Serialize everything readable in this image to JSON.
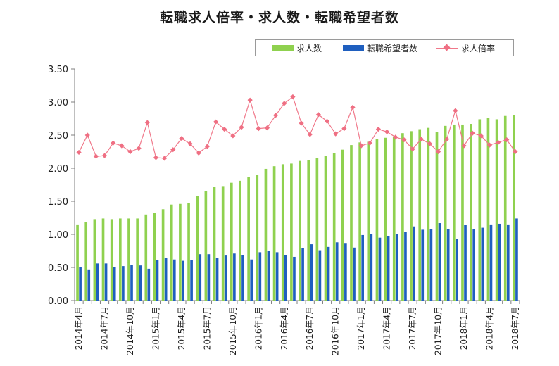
{
  "chart_data": {
    "type": "bar",
    "title": "転職求人倍率・求人数・転職希望者数",
    "xlabel": "",
    "ylabel": "",
    "ylim": [
      0,
      3.5
    ],
    "yticks": [
      "0.00",
      "0.50",
      "1.00",
      "1.50",
      "2.00",
      "2.50",
      "3.00",
      "3.50"
    ],
    "tick_labels": [
      "2014年4月",
      "2014年7月",
      "2014年10月",
      "2015年1月",
      "2015年4月",
      "2015年7月",
      "2015年10月",
      "2016年1月",
      "2016年4月",
      "2016年7月",
      "2016年10月",
      "2017年1月",
      "2017年4月",
      "2017年7月",
      "2017年10月",
      "2018年1月",
      "2018年4月",
      "2018年7月"
    ],
    "legend_position": "top-right",
    "grid": false,
    "colors": {
      "求人数": "#8fd14f",
      "転職希望者数": "#1f5fbf",
      "求人倍率": "#ef6f83"
    },
    "x": [
      "2014-04",
      "2014-05",
      "2014-06",
      "2014-07",
      "2014-08",
      "2014-09",
      "2014-10",
      "2014-11",
      "2014-12",
      "2015-01",
      "2015-02",
      "2015-03",
      "2015-04",
      "2015-05",
      "2015-06",
      "2015-07",
      "2015-08",
      "2015-09",
      "2015-10",
      "2015-11",
      "2015-12",
      "2016-01",
      "2016-02",
      "2016-03",
      "2016-04",
      "2016-05",
      "2016-06",
      "2016-07",
      "2016-08",
      "2016-09",
      "2016-10",
      "2016-11",
      "2016-12",
      "2017-01",
      "2017-02",
      "2017-03",
      "2017-04",
      "2017-05",
      "2017-06",
      "2017-07",
      "2017-08",
      "2017-09",
      "2017-10",
      "2017-11",
      "2017-12",
      "2018-01",
      "2018-02",
      "2018-03",
      "2018-04",
      "2018-05",
      "2018-06",
      "2018-07"
    ],
    "series": [
      {
        "name": "求人数",
        "kind": "bar",
        "values": [
          1.15,
          1.19,
          1.23,
          1.24,
          1.23,
          1.24,
          1.24,
          1.24,
          1.3,
          1.32,
          1.38,
          1.45,
          1.46,
          1.47,
          1.58,
          1.65,
          1.72,
          1.73,
          1.78,
          1.81,
          1.87,
          1.9,
          1.99,
          2.03,
          2.06,
          2.07,
          2.11,
          2.12,
          2.15,
          2.19,
          2.23,
          2.28,
          2.35,
          2.39,
          2.4,
          2.44,
          2.46,
          2.48,
          2.53,
          2.56,
          2.59,
          2.61,
          2.55,
          2.64,
          2.66,
          2.66,
          2.67,
          2.74,
          2.76,
          2.74,
          2.79,
          2.8
        ]
      },
      {
        "name": "転職希望者数",
        "kind": "bar",
        "values": [
          0.51,
          0.47,
          0.56,
          0.56,
          0.51,
          0.52,
          0.54,
          0.53,
          0.48,
          0.61,
          0.64,
          0.62,
          0.6,
          0.61,
          0.7,
          0.7,
          0.64,
          0.68,
          0.71,
          0.69,
          0.62,
          0.73,
          0.75,
          0.73,
          0.69,
          0.66,
          0.79,
          0.85,
          0.76,
          0.81,
          0.88,
          0.87,
          0.8,
          0.99,
          1.01,
          0.95,
          0.97,
          1.01,
          1.04,
          1.12,
          1.07,
          1.08,
          1.17,
          1.08,
          0.93,
          1.14,
          1.08,
          1.1,
          1.15,
          1.16,
          1.15,
          1.24
        ]
      },
      {
        "name": "求人倍率",
        "kind": "line",
        "values": [
          2.24,
          2.5,
          2.18,
          2.19,
          2.38,
          2.34,
          2.25,
          2.3,
          2.69,
          2.16,
          2.15,
          2.28,
          2.45,
          2.37,
          2.23,
          2.33,
          2.7,
          2.59,
          2.49,
          2.62,
          3.03,
          2.6,
          2.61,
          2.8,
          2.98,
          3.08,
          2.68,
          2.51,
          2.81,
          2.71,
          2.52,
          2.6,
          2.92,
          2.34,
          2.38,
          2.59,
          2.55,
          2.47,
          2.43,
          2.29,
          2.44,
          2.37,
          2.25,
          2.44,
          2.87,
          2.34,
          2.53,
          2.49,
          2.35,
          2.39,
          2.43,
          2.25
        ]
      }
    ]
  }
}
